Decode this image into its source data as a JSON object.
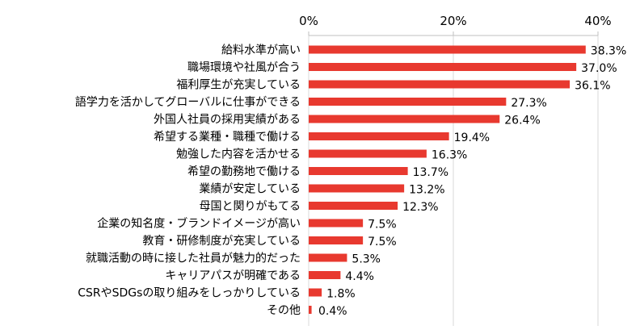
{
  "chart_data": {
    "type": "bar",
    "orientation": "horizontal",
    "categories": [
      "給料水準が高い",
      "職場環境や社風が合う",
      "福利厚生が充実している",
      "語学力を活かしてグローバルに仕事ができる",
      "外国人社員の採用実績がある",
      "希望する業種・職種で働ける",
      "勉強した内容を活かせる",
      "希望の勤務地で働ける",
      "業績が安定している",
      "母国と関りがもてる",
      "企業の知名度・ブランドイメージが高い",
      "教育・研修制度が充実している",
      "就職活動の時に接した社員が魅力的だった",
      "キャリアパスが明確である",
      "CSRやSDGsの取り組みをしっかりしている",
      "その他"
    ],
    "values": [
      38.3,
      37.0,
      36.1,
      27.3,
      26.4,
      19.4,
      16.3,
      13.7,
      13.2,
      12.3,
      7.5,
      7.5,
      5.3,
      4.4,
      1.8,
      0.4
    ],
    "value_labels": [
      "38.3%",
      "37.0%",
      "36.1%",
      "27.3%",
      "26.4%",
      "19.4%",
      "16.3%",
      "13.7%",
      "13.2%",
      "12.3%",
      "7.5%",
      "7.5%",
      "5.3%",
      "4.4%",
      "1.8%",
      "0.4%"
    ],
    "x_ticks": [
      0,
      20,
      40
    ],
    "x_tick_labels": [
      "0%",
      "20%",
      "40%"
    ],
    "xlim": [
      0,
      40
    ],
    "axis_position": "top",
    "grid": true,
    "bar_color": "#e8392f",
    "grid_color": "#d9d9d9"
  }
}
